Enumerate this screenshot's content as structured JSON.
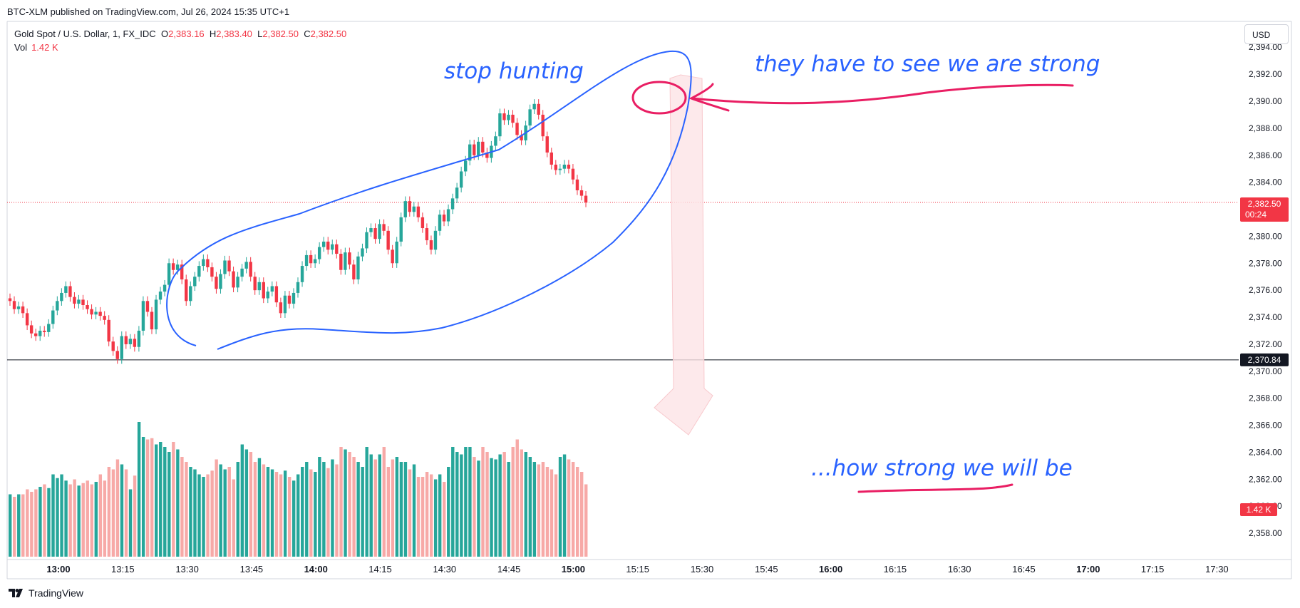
{
  "header": {
    "published": "BTC-XLM published on TradingView.com, Jul 26, 2024 15:35 UTC+1",
    "symbol": "Gold Spot / U.S. Dollar, 1, FX_IDC",
    "o_label": "O",
    "o_value": "2,383.16",
    "h_label": "H",
    "h_value": "2,383.40",
    "l_label": "L",
    "l_value": "2,382.50",
    "c_label": "C",
    "c_value": "2,382.50",
    "vol_label": "Vol",
    "vol_value": "1.42 K"
  },
  "currency_button": "USD",
  "brand": "TradingView",
  "price_tag": {
    "price": "2,382.50",
    "countdown": "00:24"
  },
  "line_tag": "2,370.84",
  "vol_tag": "1.42 K",
  "annotations": {
    "stop": "stop hunting",
    "strong": "they have to see we are strong",
    "will": "...how strong we will be"
  },
  "colors": {
    "up": "#26a69a",
    "down": "#f23645",
    "vol_up": "#26a69a",
    "vol_down": "#f7a9a7",
    "annot_blue": "#2962ff",
    "annot_pink": "#e91e63"
  },
  "chart_data": {
    "type": "candlestick",
    "ylim": [
      2357,
      2395
    ],
    "yticks": [
      "2,358.00",
      "2,360.00",
      "2,362.00",
      "2,364.00",
      "2,366.00",
      "2,368.00",
      "2,370.00",
      "2,372.00",
      "2,374.00",
      "2,376.00",
      "2,378.00",
      "2,380.00",
      "2,382.00",
      "2,384.00",
      "2,386.00",
      "2,388.00",
      "2,390.00",
      "2,392.00",
      "2,394.00"
    ],
    "xticks": [
      "13:00",
      "13:15",
      "13:30",
      "13:45",
      "14:00",
      "14:15",
      "14:30",
      "14:45",
      "15:00",
      "15:15",
      "15:30",
      "15:45",
      "16:00",
      "16:15",
      "16:30",
      "16:45",
      "17:00",
      "17:15",
      "17:30"
    ],
    "horizontal_line": 2370.84,
    "last_price": 2382.5,
    "closes": [
      2375.2,
      2374.6,
      2374.8,
      2374.3,
      2373.4,
      2372.8,
      2372.6,
      2373.0,
      2372.9,
      2373.5,
      2374.5,
      2375.2,
      2375.8,
      2376.3,
      2375.5,
      2375.0,
      2375.3,
      2374.9,
      2374.6,
      2374.2,
      2374.4,
      2374.1,
      2373.8,
      2372.2,
      2371.5,
      2370.9,
      2372.6,
      2372.0,
      2372.4,
      2371.8,
      2373.0,
      2375.2,
      2374.4,
      2373.1,
      2375.3,
      2375.9,
      2376.4,
      2378.0,
      2377.5,
      2377.9,
      2376.8,
      2375.2,
      2376.3,
      2377.0,
      2377.8,
      2378.3,
      2377.7,
      2377.0,
      2376.1,
      2377.2,
      2378.2,
      2377.4,
      2376.2,
      2377.0,
      2377.6,
      2378.1,
      2377.0,
      2376.0,
      2376.6,
      2375.4,
      2375.9,
      2376.3,
      2375.1,
      2374.3,
      2375.6,
      2375.0,
      2375.8,
      2376.6,
      2377.8,
      2378.6,
      2378.0,
      2378.3,
      2379.2,
      2379.6,
      2379.0,
      2379.4,
      2378.7,
      2377.5,
      2378.8,
      2377.9,
      2376.8,
      2378.5,
      2379.1,
      2380.3,
      2380.6,
      2379.8,
      2380.9,
      2380.4,
      2379.0,
      2378.0,
      2379.6,
      2381.4,
      2382.6,
      2381.8,
      2382.2,
      2381.4,
      2380.6,
      2379.7,
      2379.0,
      2380.4,
      2381.6,
      2381.1,
      2382.0,
      2382.8,
      2383.6,
      2384.8,
      2385.6,
      2386.8,
      2386.0,
      2387.0,
      2386.2,
      2385.8,
      2386.7,
      2387.4,
      2389.1,
      2388.6,
      2389.0,
      2388.4,
      2387.5,
      2387.1,
      2388.2,
      2389.4,
      2389.8,
      2389.0,
      2387.4,
      2386.2,
      2385.3,
      2384.9,
      2385.0,
      2385.3,
      2385.0,
      2384.2,
      2383.4,
      2383.0,
      2382.5
    ],
    "volumes": [
      250,
      240,
      250,
      250,
      270,
      260,
      270,
      280,
      290,
      275,
      330,
      315,
      330,
      305,
      290,
      310,
      285,
      295,
      305,
      290,
      300,
      330,
      305,
      360,
      350,
      390,
      370,
      350,
      270,
      325,
      540,
      480,
      470,
      475,
      450,
      460,
      440,
      420,
      460,
      430,
      400,
      380,
      360,
      350,
      330,
      320,
      330,
      345,
      390,
      370,
      350,
      360,
      310,
      380,
      450,
      430,
      420,
      380,
      395,
      370,
      360,
      350,
      340,
      330,
      345,
      320,
      305,
      330,
      360,
      380,
      350,
      340,
      400,
      380,
      355,
      390,
      370,
      440,
      430,
      420,
      400,
      380,
      360,
      440,
      410,
      390,
      410,
      440,
      360,
      390,
      400,
      380,
      380,
      350,
      370,
      320,
      320,
      340,
      330,
      310,
      330,
      300,
      360,
      440,
      420,
      410,
      440,
      440,
      400,
      385,
      440,
      420,
      395,
      390,
      410,
      420,
      380,
      440,
      470,
      430,
      420,
      400,
      380,
      370,
      380,
      360,
      350,
      330,
      400,
      410,
      390,
      380,
      360,
      340,
      290
    ]
  }
}
